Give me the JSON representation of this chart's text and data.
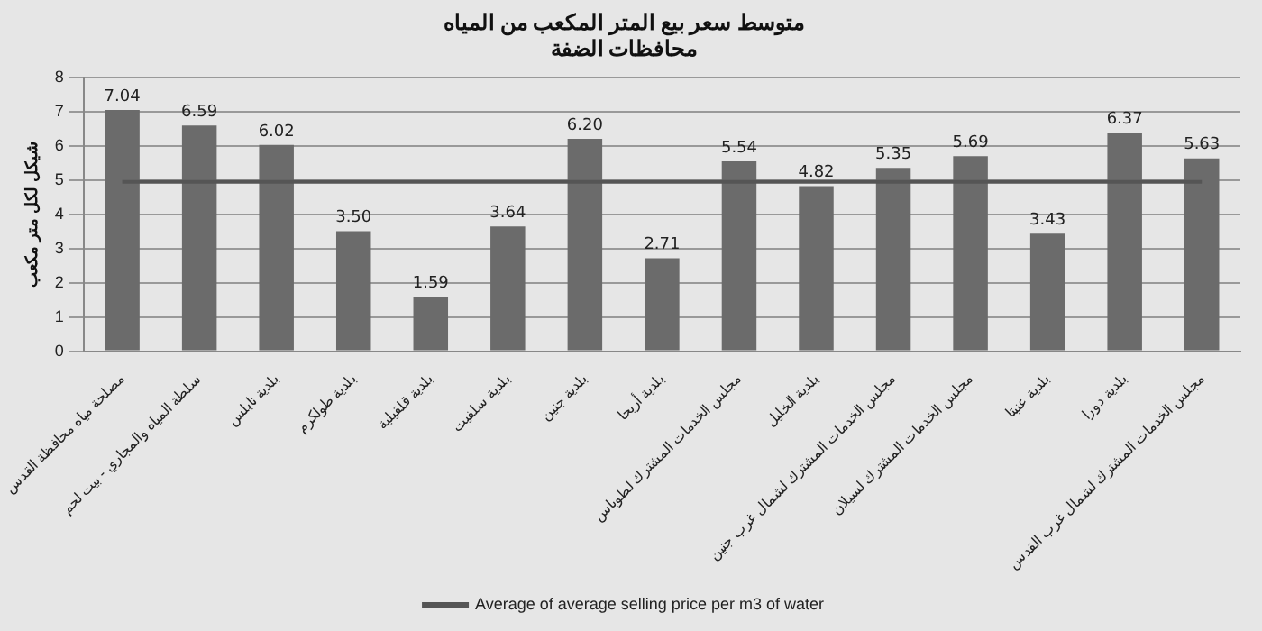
{
  "chart_data": {
    "type": "bar",
    "title": "متوسط سعر بيع المتر المكعب من المياه",
    "subtitle": "محافظات الضفة",
    "ylabel": "شيكل لكل متر مكعب",
    "categories": [
      "مصلحة مياه محافظة القدس",
      "سلطة المياه والمجاري - بيت لحم",
      "بلدية نابلس",
      "بلدية طولكرم",
      "بلدية قلقيلية",
      "بلدية سلفيت",
      "بلدية جنين",
      "بلدية أريحا",
      "مجلس الخدمات المشترك لطوباس",
      "بلدية الخليل",
      "مجلس الخدمات المشترك لشمال غرب جنين",
      "مجلس الخدمات المشترك لسيلان",
      "بلدية عنبتا",
      "بلدية دورا",
      "مجلس الخدمات المشترك لشمال غرب القدس"
    ],
    "series": [
      {
        "color": "#6b6b6b",
        "values": [
          7.04,
          6.59,
          6.02,
          3.5,
          1.59,
          3.64,
          6.2,
          2.71,
          5.54,
          4.82,
          5.35,
          5.69,
          3.43,
          6.37,
          5.63
        ],
        "value_labels": [
          "7.04",
          "6.59",
          "6.02",
          "3.50",
          "1.59",
          "3.64",
          "6.20",
          "2.71",
          "5.54",
          "4.82",
          "5.35",
          "5.69",
          "3.43",
          "6.37",
          "5.63"
        ]
      },
      {
        "type": "line",
        "name": "Average of average selling price per m3 of water",
        "color": "#555555",
        "values": [
          4.94,
          4.94,
          4.94,
          4.94,
          4.94,
          4.94,
          4.94,
          4.94,
          4.94,
          4.94,
          4.94,
          4.94,
          4.94,
          4.94,
          4.94
        ]
      }
    ],
    "ylim": [
      0,
      8
    ],
    "yticks": [
      0,
      1,
      2,
      3,
      4,
      5,
      6,
      7,
      8
    ],
    "grid": "y",
    "legend": "bottom",
    "marker": "none"
  }
}
